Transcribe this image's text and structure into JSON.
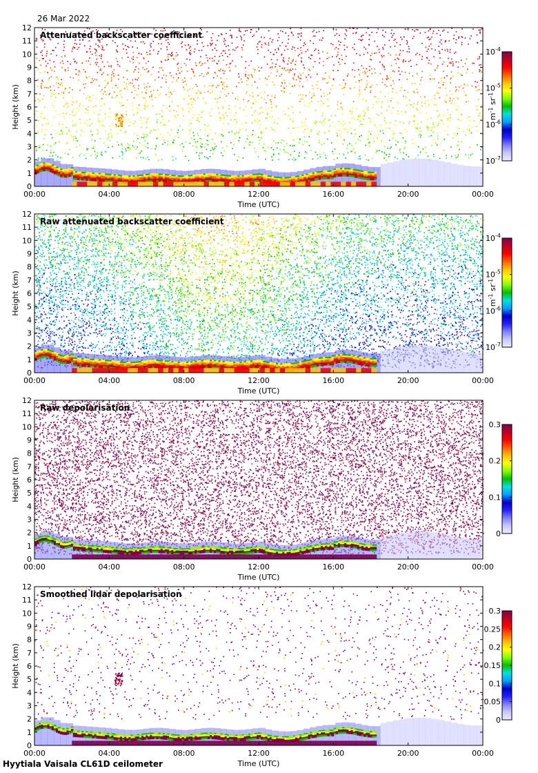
{
  "date_label": "26 Mar 2022",
  "footer_label": "Hyytiala Vaisala CL61D ceilometer",
  "chart_data": [
    {
      "type": "heatmap",
      "title": "Attenuated backscatter coefficient",
      "xlabel": "Time (UTC)",
      "ylabel": "Height (km)",
      "xticks": [
        "00:00",
        "04:00",
        "08:00",
        "12:00",
        "16:00",
        "20:00",
        "00:00"
      ],
      "yticks": [
        "0",
        "1",
        "2",
        "3",
        "4",
        "5",
        "6",
        "7",
        "8",
        "9",
        "10",
        "11",
        "12"
      ],
      "xlim_hours": [
        0,
        24
      ],
      "ylim_km": [
        0,
        12
      ],
      "scale": "log",
      "colorbar": {
        "ticks": [
          {
            "base": "10",
            "exp": "-4"
          },
          {
            "base": "10",
            "exp": "-5"
          },
          {
            "base": "10",
            "exp": "-6"
          },
          {
            "base": "10",
            "exp": "-7"
          }
        ],
        "unit": "m-1 sr-1"
      },
      "features": {
        "noise": "sparse",
        "cloud_base_km": 1.0,
        "cloud_end_hour": 18.3,
        "aloft_cloud": "04:30 at 5 km"
      }
    },
    {
      "type": "heatmap",
      "title": "Raw attenuated backscatter coefficient",
      "xlabel": "Time (UTC)",
      "ylabel": "Height (km)",
      "xticks": [
        "00:00",
        "04:00",
        "08:00",
        "12:00",
        "16:00",
        "20:00",
        "00:00"
      ],
      "yticks": [
        "0",
        "1",
        "2",
        "3",
        "4",
        "5",
        "6",
        "7",
        "8",
        "9",
        "10",
        "11",
        "12"
      ],
      "xlim_hours": [
        0,
        24
      ],
      "ylim_km": [
        0,
        12
      ],
      "scale": "log",
      "colorbar": {
        "ticks": [
          {
            "base": "10",
            "exp": "-4"
          },
          {
            "base": "10",
            "exp": "-5"
          },
          {
            "base": "10",
            "exp": "-6"
          },
          {
            "base": "10",
            "exp": "-7"
          }
        ],
        "unit": "m-1 sr-1"
      },
      "features": {
        "noise": "dense",
        "cloud_base_km": 1.0,
        "cloud_end_hour": 18.3
      }
    },
    {
      "type": "heatmap",
      "title": "Raw depolarisation",
      "xlabel": "Time (UTC)",
      "ylabel": "Height (km)",
      "xticks": [
        "00:00",
        "04:00",
        "08:00",
        "12:00",
        "16:00",
        "20:00",
        "00:00"
      ],
      "yticks": [
        "0",
        "1",
        "2",
        "3",
        "4",
        "5",
        "6",
        "7",
        "8",
        "9",
        "10",
        "11",
        "12"
      ],
      "xlim_hours": [
        0,
        24
      ],
      "ylim_km": [
        0,
        12
      ],
      "scale": "linear",
      "colorbar": {
        "ticks": [
          "0.3",
          "0.2",
          "0.1",
          "0"
        ],
        "range": [
          0,
          0.3
        ]
      },
      "features": {
        "noise": "purple-dense",
        "cloud_base_km": 0.8,
        "cloud_end_hour": 18.3
      }
    },
    {
      "type": "heatmap",
      "title": "Smoothed lidar depolarisation",
      "xlabel": "Time (UTC)",
      "ylabel": "Height (km)",
      "xticks": [
        "00:00",
        "04:00",
        "08:00",
        "12:00",
        "16:00",
        "20:00",
        "00:00"
      ],
      "yticks": [
        "0",
        "1",
        "2",
        "3",
        "4",
        "5",
        "6",
        "7",
        "8",
        "9",
        "10",
        "11",
        "12"
      ],
      "xlim_hours": [
        0,
        24
      ],
      "ylim_km": [
        0,
        12
      ],
      "scale": "linear",
      "colorbar": {
        "ticks": [
          "0.3",
          "0.25",
          "0.2",
          "0.15",
          "0.1",
          "0.05",
          "0"
        ],
        "range": [
          0,
          0.3
        ]
      },
      "features": {
        "noise": "purple-sparse",
        "cloud_base_km": 0.6,
        "cloud_end_hour": 18.3
      }
    }
  ],
  "colormap": [
    "#ececff",
    "#c8c8ff",
    "#8080ff",
    "#2020ff",
    "#0000c8",
    "#00a0ff",
    "#00e0e0",
    "#00c000",
    "#80ff00",
    "#ffff00",
    "#ffc000",
    "#ff6000",
    "#ff0000",
    "#c00020",
    "#800050"
  ]
}
